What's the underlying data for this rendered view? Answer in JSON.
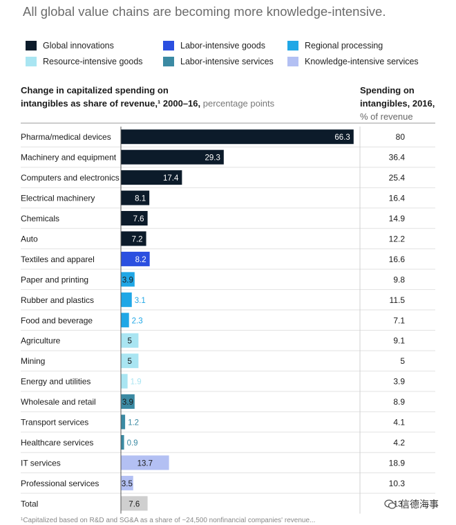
{
  "title": "All global value chains are becoming more knowledge-intensive.",
  "legend": [
    {
      "label": "Global innovations",
      "color": "#0c1b2a"
    },
    {
      "label": "Labor-intensive goods",
      "color": "#2b4fe0"
    },
    {
      "label": "Regional processing",
      "color": "#20a7e6"
    },
    {
      "label": "Resource-intensive goods",
      "color": "#a9e5f2"
    },
    {
      "label": "Labor-intensive services",
      "color": "#3b8aa3"
    },
    {
      "label": "Knowledge-intensive services",
      "color": "#b3c0f3"
    }
  ],
  "left_header": {
    "line1": "Change in capitalized spending on",
    "line2_bold": "intangibles as share of revenue,¹ 2000–16,",
    "line2_light": " percentage points"
  },
  "right_header": {
    "line1": "Spending on",
    "line2": "intangibles, 2016,",
    "line3": "% of revenue"
  },
  "chart_data": {
    "type": "bar",
    "orientation": "horizontal",
    "categories": [
      "Pharma/medical devices",
      "Machinery and equipment",
      "Computers and electronics",
      "Electrical machinery",
      "Chemicals",
      "Auto",
      "Textiles and apparel",
      "Paper and printing",
      "Rubber and plastics",
      "Food and beverage",
      "Agriculture",
      "Mining",
      "Energy and utilities",
      "Wholesale and retail",
      "Transport services",
      "Healthcare services",
      "IT services",
      "Professional services",
      "Total"
    ],
    "values": [
      66.3,
      29.3,
      17.4,
      8.1,
      7.6,
      7.2,
      8.2,
      3.9,
      3.1,
      2.3,
      5,
      5,
      1.9,
      3.9,
      1.2,
      0.9,
      13.7,
      3.5,
      7.6
    ],
    "value_labels": [
      "66.3",
      "29.3",
      "17.4",
      "8.1",
      "7.6",
      "7.2",
      "8.2",
      "3.9",
      "3.1",
      "2.3",
      "5",
      "5",
      "1.9",
      "3.9",
      "1.2",
      "0.9",
      "13.7",
      "3.5",
      "7.6"
    ],
    "groups": [
      "Global innovations",
      "Global innovations",
      "Global innovations",
      "Global innovations",
      "Global innovations",
      "Global innovations",
      "Labor-intensive goods",
      "Regional processing",
      "Regional processing",
      "Regional processing",
      "Resource-intensive goods",
      "Resource-intensive goods",
      "Resource-intensive goods",
      "Labor-intensive services",
      "Labor-intensive services",
      "Labor-intensive services",
      "Knowledge-intensive services",
      "Knowledge-intensive services",
      "Total"
    ],
    "total_color": "#cfcfcf",
    "spending_2016": [
      "80",
      "36.4",
      "25.4",
      "16.4",
      "14.9",
      "12.2",
      "16.6",
      "9.8",
      "11.5",
      "7.1",
      "9.1",
      "5",
      "3.9",
      "8.9",
      "4.1",
      "4.2",
      "18.9",
      "10.3",
      "13."
    ],
    "xlim": [
      0,
      70
    ]
  },
  "footnote": "¹Capitalized based on R&D and SG&A as a share of ~24,500 nonfinancial companies' revenue...",
  "watermark": "信德海事"
}
